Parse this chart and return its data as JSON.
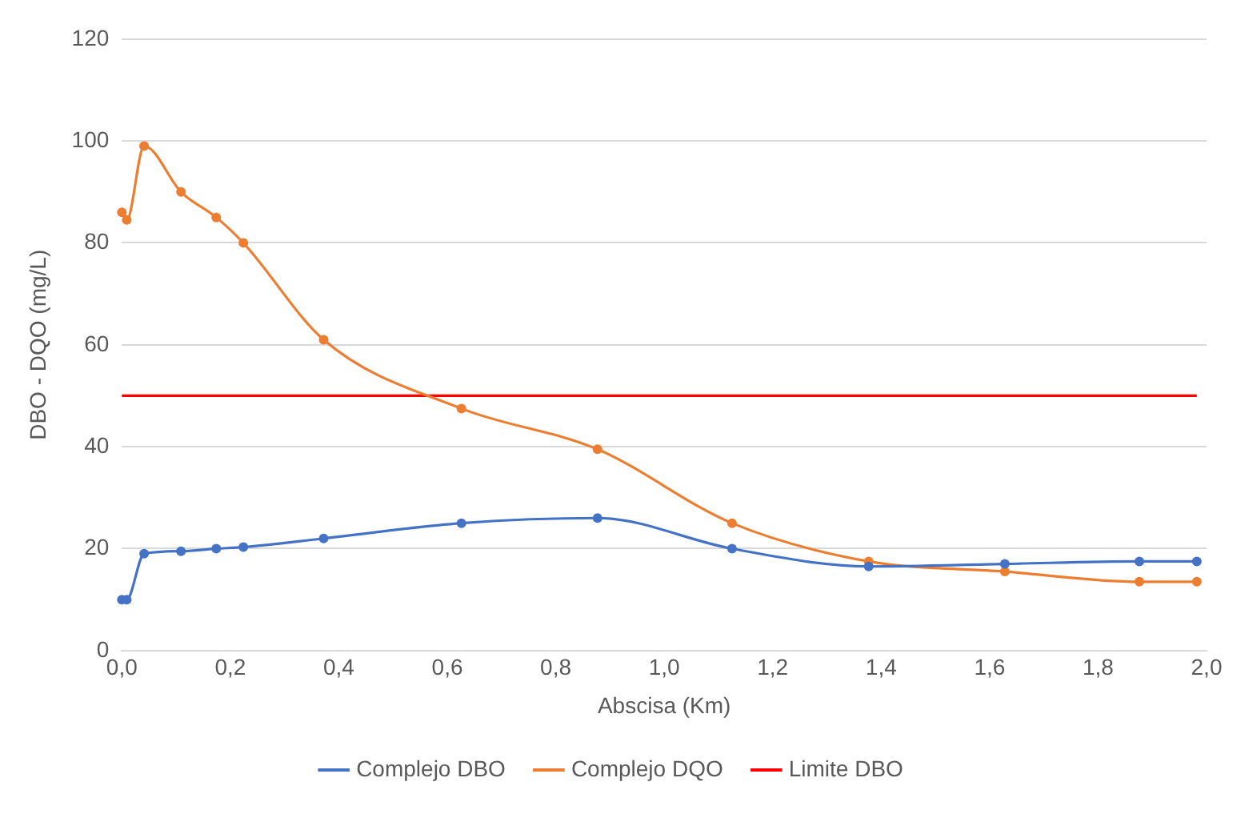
{
  "chart_data": {
    "type": "line",
    "xlabel": "Abscisa (Km)",
    "ylabel": "DBO - DQO (mg/L)",
    "xlim": [
      0,
      2
    ],
    "xticks": [
      {
        "value": 0,
        "label": "0,0"
      },
      {
        "value": 0.2,
        "label": "0,2"
      },
      {
        "value": 0.4,
        "label": "0,4"
      },
      {
        "value": 0.6,
        "label": "0,6"
      },
      {
        "value": 0.8,
        "label": "0,8"
      },
      {
        "value": 1,
        "label": "1,0"
      },
      {
        "value": 1.2,
        "label": "1,2"
      },
      {
        "value": 1.4,
        "label": "1,4"
      },
      {
        "value": 1.6,
        "label": "1,6"
      },
      {
        "value": 1.8,
        "label": "1,8"
      },
      {
        "value": 2,
        "label": "2,0"
      }
    ],
    "ylim": [
      0,
      120
    ],
    "yticks": [
      0,
      20,
      40,
      60,
      80,
      100,
      120
    ],
    "grid": "y",
    "legend": "bottom",
    "series": [
      {
        "name": "Complejo DBO",
        "color": "#4472c4",
        "marker": "circle",
        "x": [
          0,
          0.009,
          0.041,
          0.109,
          0.174,
          0.224,
          0.372,
          0.626,
          0.877,
          1.125,
          1.377,
          1.628,
          1.876,
          1.982
        ],
        "values": [
          10,
          10,
          19,
          19.5,
          20,
          20.3,
          22,
          25,
          26,
          20,
          16.5,
          17,
          17.5,
          17.5
        ]
      },
      {
        "name": "Complejo DQO",
        "color": "#ed7d31",
        "marker": "circle",
        "x": [
          0,
          0.009,
          0.041,
          0.109,
          0.174,
          0.224,
          0.372,
          0.626,
          0.877,
          1.125,
          1.377,
          1.628,
          1.876,
          1.982
        ],
        "values": [
          86,
          84.5,
          99,
          90,
          85,
          80,
          61,
          47.5,
          39.5,
          25,
          17.5,
          15.5,
          13.5,
          13.5
        ]
      },
      {
        "name": "Limite DBO",
        "color": "#ff0000",
        "marker": "none",
        "x": [
          0,
          1.982
        ],
        "values": [
          50,
          50
        ]
      }
    ]
  }
}
